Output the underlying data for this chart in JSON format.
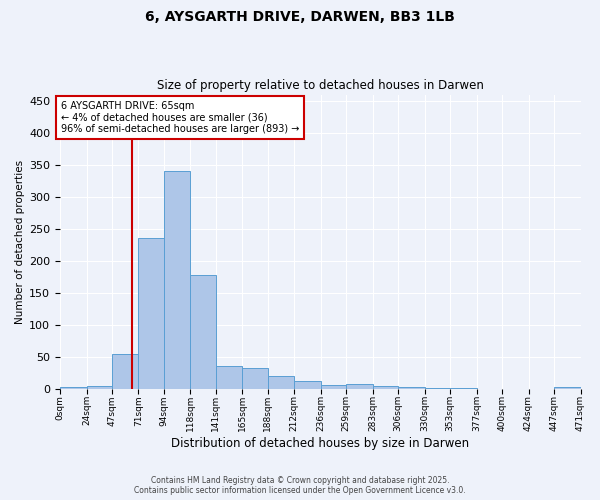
{
  "title_line1": "6, AYSGARTH DRIVE, DARWEN, BB3 1LB",
  "title_line2": "Size of property relative to detached houses in Darwen",
  "xlabel": "Distribution of detached houses by size in Darwen",
  "ylabel": "Number of detached properties",
  "bin_edges": [
    0,
    24,
    47,
    71,
    94,
    118,
    141,
    165,
    188,
    212,
    236,
    259,
    283,
    306,
    330,
    353,
    377,
    400,
    424,
    447,
    471
  ],
  "bar_heights": [
    3,
    4,
    55,
    235,
    340,
    178,
    36,
    33,
    20,
    12,
    6,
    7,
    4,
    3,
    1,
    1,
    0,
    0,
    0,
    3
  ],
  "bar_color": "#aec6e8",
  "bar_edgecolor": "#5a9fd4",
  "property_size": 65,
  "vline_color": "#cc0000",
  "annotation_text": "6 AYSGARTH DRIVE: 65sqm\n← 4% of detached houses are smaller (36)\n96% of semi-detached houses are larger (893) →",
  "annotation_box_color": "#ffffff",
  "annotation_box_edgecolor": "#cc0000",
  "ylim": [
    0,
    460
  ],
  "yticks": [
    0,
    50,
    100,
    150,
    200,
    250,
    300,
    350,
    400,
    450
  ],
  "tick_labels": [
    "0sqm",
    "24sqm",
    "47sqm",
    "71sqm",
    "94sqm",
    "118sqm",
    "141sqm",
    "165sqm",
    "188sqm",
    "212sqm",
    "236sqm",
    "259sqm",
    "283sqm",
    "306sqm",
    "330sqm",
    "353sqm",
    "377sqm",
    "400sqm",
    "424sqm",
    "447sqm",
    "471sqm"
  ],
  "footer_line1": "Contains HM Land Registry data © Crown copyright and database right 2025.",
  "footer_line2": "Contains public sector information licensed under the Open Government Licence v3.0.",
  "background_color": "#eef2fa",
  "grid_color": "#ffffff"
}
